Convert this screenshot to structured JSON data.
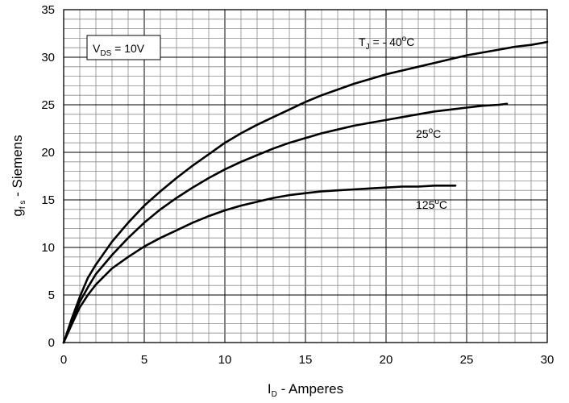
{
  "chart_data": {
    "type": "line",
    "xlabel": {
      "main": "I",
      "sub": "D",
      "rest": " - Amperes"
    },
    "ylabel": {
      "main": "g",
      "sub": "f s",
      "rest": " - Siemens"
    },
    "xlim": [
      0,
      30
    ],
    "ylim": [
      0,
      35
    ],
    "x_ticks": [
      0,
      5,
      10,
      15,
      20,
      25,
      30
    ],
    "y_ticks": [
      0,
      5,
      10,
      15,
      20,
      25,
      30,
      35
    ],
    "grid": true,
    "minor_grid_step_x": 1,
    "minor_grid_step_y": 1,
    "condition_box": {
      "main": "V",
      "sub": "DS",
      "rest": " = 10V"
    },
    "series": [
      {
        "label": {
          "pre": "T",
          "sub": "J",
          "mid": " = - 40",
          "sup": "o",
          "post": "C"
        },
        "x": [
          0,
          0.5,
          1,
          1.5,
          2,
          3,
          4,
          5,
          6,
          7,
          8,
          9,
          10,
          11,
          12,
          13,
          14,
          15,
          16,
          17,
          18,
          19,
          20,
          21,
          22,
          23,
          24,
          25,
          26,
          27,
          28,
          29,
          30
        ],
        "y": [
          0,
          2.5,
          4.8,
          6.8,
          8.2,
          10.6,
          12.6,
          14.4,
          15.9,
          17.3,
          18.6,
          19.8,
          21.0,
          22.0,
          22.9,
          23.7,
          24.5,
          25.3,
          26.0,
          26.6,
          27.2,
          27.7,
          28.2,
          28.6,
          29.0,
          29.4,
          29.8,
          30.2,
          30.5,
          30.8,
          31.1,
          31.3,
          31.6
        ]
      },
      {
        "label": {
          "pre": "25",
          "sub": "",
          "mid": "",
          "sup": "o",
          "post": "C"
        },
        "x": [
          0,
          0.5,
          1,
          1.5,
          2,
          3,
          4,
          5,
          6,
          7,
          8,
          9,
          10,
          11,
          12,
          13,
          14,
          15,
          16,
          17,
          18,
          19,
          20,
          21,
          22,
          23,
          24,
          25,
          26,
          27,
          27.5
        ],
        "y": [
          0,
          2.2,
          4.3,
          5.8,
          7.2,
          9.2,
          11.0,
          12.6,
          14.0,
          15.2,
          16.3,
          17.3,
          18.2,
          19.0,
          19.7,
          20.4,
          21.0,
          21.5,
          22.0,
          22.4,
          22.8,
          23.1,
          23.4,
          23.7,
          24.0,
          24.3,
          24.5,
          24.7,
          24.9,
          25.0,
          25.1
        ]
      },
      {
        "label": {
          "pre": "125",
          "sub": "",
          "mid": "",
          "sup": "o",
          "post": "C"
        },
        "x": [
          0,
          0.5,
          1,
          1.5,
          2,
          3,
          4,
          5,
          6,
          7,
          8,
          9,
          10,
          11,
          12,
          13,
          14,
          15,
          16,
          17,
          18,
          19,
          20,
          21,
          22,
          23,
          24,
          24.3
        ],
        "y": [
          0,
          1.9,
          3.7,
          5.0,
          6.1,
          7.8,
          9.0,
          10.1,
          11.0,
          11.8,
          12.6,
          13.3,
          13.9,
          14.4,
          14.8,
          15.2,
          15.5,
          15.7,
          15.9,
          16.0,
          16.1,
          16.2,
          16.3,
          16.4,
          16.4,
          16.5,
          16.5,
          16.5
        ]
      }
    ]
  }
}
